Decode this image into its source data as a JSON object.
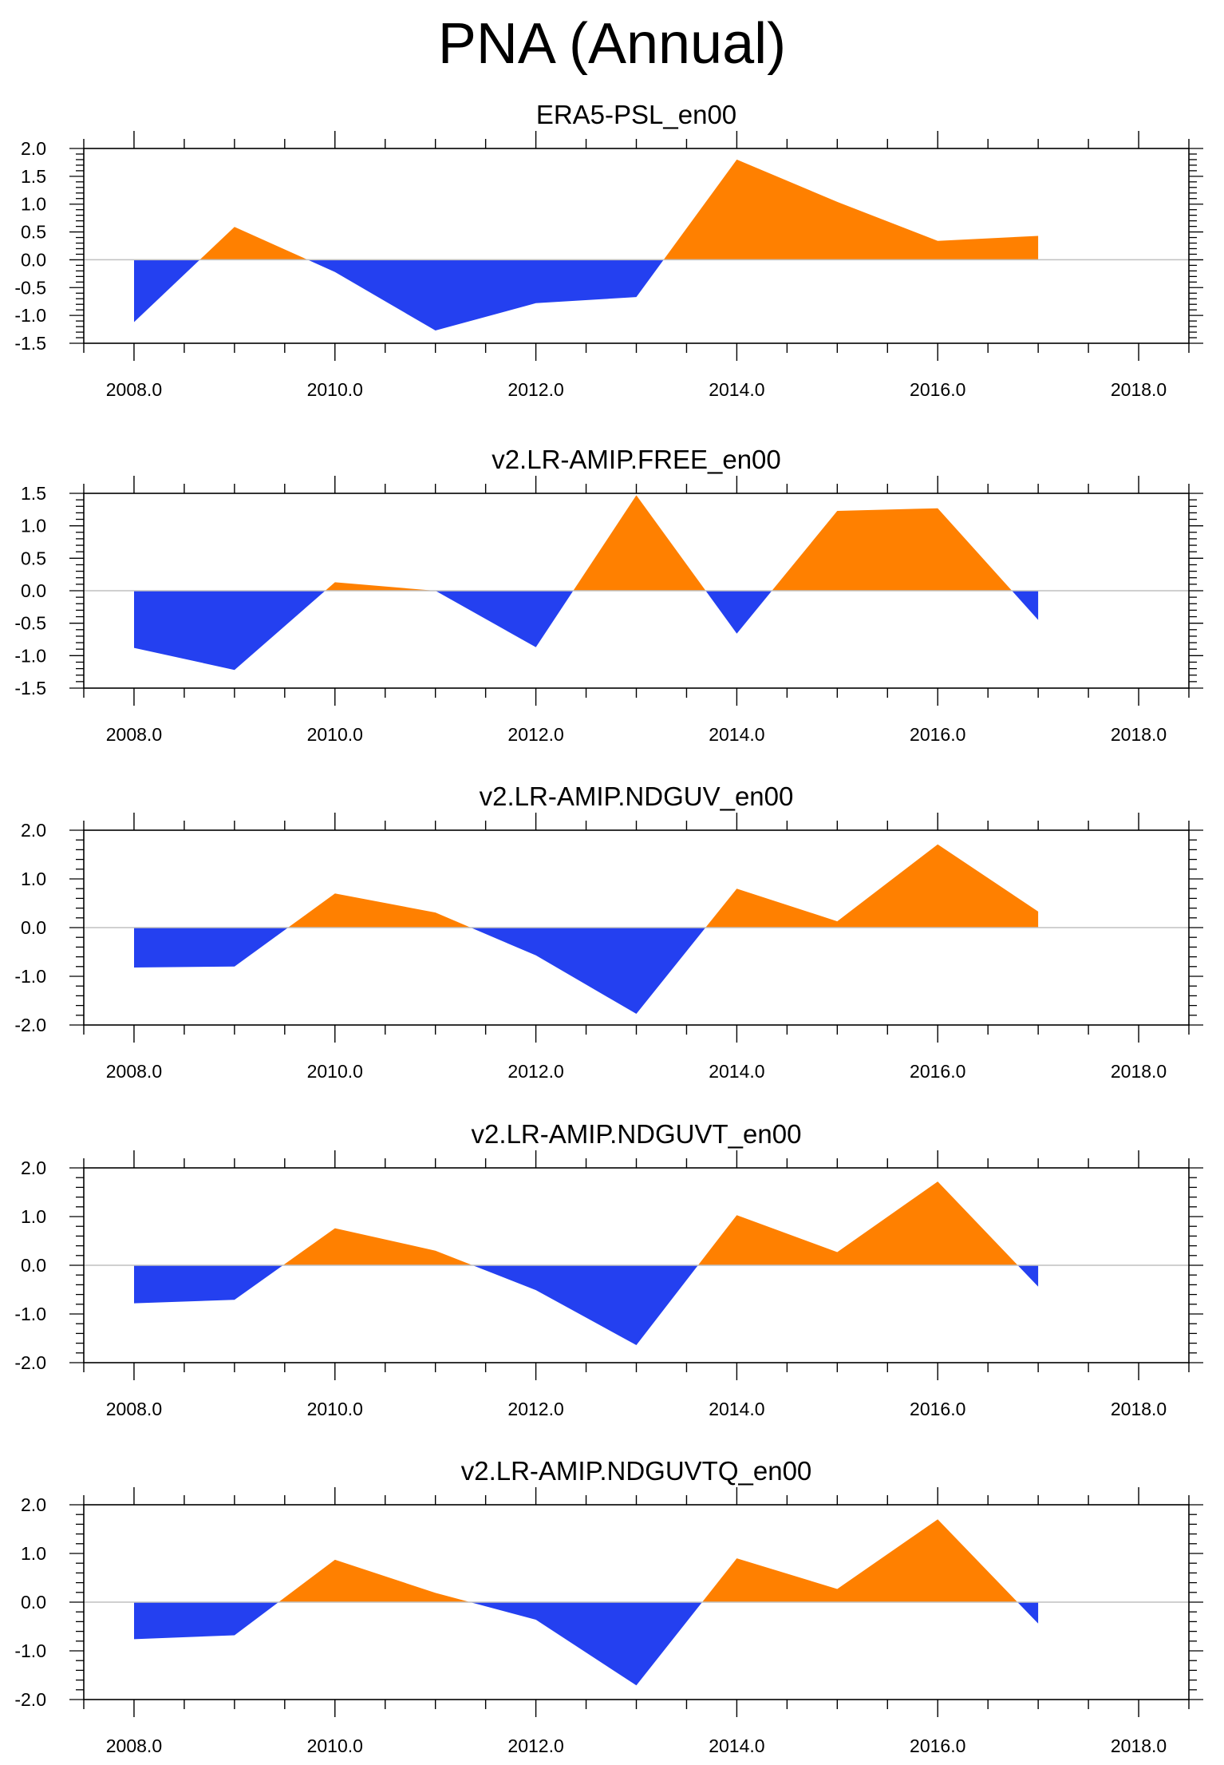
{
  "figure": {
    "title": "PNA (Annual)"
  },
  "colors": {
    "positive": "#ff8000",
    "negative": "#2440f0",
    "zero_line": "#c0c0c0",
    "axis": "#000000"
  },
  "chart_data": [
    {
      "type": "area",
      "title": "ERA5-PSL_en00",
      "xlabel": "",
      "ylabel": "",
      "xlim": [
        2007.5,
        2018.5
      ],
      "ylim": [
        -1.5,
        2.0
      ],
      "x_ticks": [
        2008,
        2010,
        2012,
        2014,
        2016,
        2018
      ],
      "x_tick_labels": [
        "2008.0",
        "2010.0",
        "2012.0",
        "2014.0",
        "2016.0",
        "2018.0"
      ],
      "y_ticks": [
        -1.5,
        -1.0,
        -0.5,
        0.0,
        0.5,
        1.0,
        1.5,
        2.0
      ],
      "y_tick_labels": [
        "-1.5",
        "-1.0",
        "-0.5",
        "0.0",
        "0.5",
        "1.0",
        "1.5",
        "2.0"
      ],
      "y_minor_step": 0.1,
      "x": [
        2008,
        2009,
        2010,
        2011,
        2012,
        2013,
        2014,
        2015,
        2016,
        2017
      ],
      "values": [
        -1.12,
        0.59,
        -0.22,
        -1.27,
        -0.78,
        -0.67,
        1.8,
        1.04,
        0.34,
        0.43
      ]
    },
    {
      "type": "area",
      "title": "v2.LR-AMIP.FREE_en00",
      "xlabel": "",
      "ylabel": "",
      "xlim": [
        2007.5,
        2018.5
      ],
      "ylim": [
        -1.5,
        1.5
      ],
      "x_ticks": [
        2008,
        2010,
        2012,
        2014,
        2016,
        2018
      ],
      "x_tick_labels": [
        "2008.0",
        "2010.0",
        "2012.0",
        "2014.0",
        "2016.0",
        "2018.0"
      ],
      "y_ticks": [
        -1.5,
        -1.0,
        -0.5,
        0.0,
        0.5,
        1.0,
        1.5
      ],
      "y_tick_labels": [
        "-1.5",
        "-1.0",
        "-0.5",
        "0.0",
        "0.5",
        "1.0",
        "1.5"
      ],
      "y_minor_step": 0.1,
      "x": [
        2008,
        2009,
        2010,
        2011,
        2012,
        2013,
        2014,
        2015,
        2016,
        2017
      ],
      "values": [
        -0.88,
        -1.22,
        0.13,
        0.0,
        -0.87,
        1.47,
        -0.66,
        1.23,
        1.27,
        -0.45
      ]
    },
    {
      "type": "area",
      "title": "v2.LR-AMIP.NDGUV_en00",
      "xlabel": "",
      "ylabel": "",
      "xlim": [
        2007.5,
        2018.5
      ],
      "ylim": [
        -2.0,
        2.0
      ],
      "x_ticks": [
        2008,
        2010,
        2012,
        2014,
        2016,
        2018
      ],
      "x_tick_labels": [
        "2008.0",
        "2010.0",
        "2012.0",
        "2014.0",
        "2016.0",
        "2018.0"
      ],
      "y_ticks": [
        -2.0,
        -1.0,
        0.0,
        1.0,
        2.0
      ],
      "y_tick_labels": [
        "-2.0",
        "-1.0",
        "0.0",
        "1.0",
        "2.0"
      ],
      "y_minor_step": 0.2,
      "x": [
        2008,
        2009,
        2010,
        2011,
        2012,
        2013,
        2014,
        2015,
        2016,
        2017
      ],
      "values": [
        -0.82,
        -0.8,
        0.7,
        0.31,
        -0.57,
        -1.77,
        0.8,
        0.13,
        1.71,
        0.33
      ]
    },
    {
      "type": "area",
      "title": "v2.LR-AMIP.NDGUVT_en00",
      "xlabel": "",
      "ylabel": "",
      "xlim": [
        2007.5,
        2018.5
      ],
      "ylim": [
        -2.0,
        2.0
      ],
      "x_ticks": [
        2008,
        2010,
        2012,
        2014,
        2016,
        2018
      ],
      "x_tick_labels": [
        "2008.0",
        "2010.0",
        "2012.0",
        "2014.0",
        "2016.0",
        "2018.0"
      ],
      "y_ticks": [
        -2.0,
        -1.0,
        0.0,
        1.0,
        2.0
      ],
      "y_tick_labels": [
        "-2.0",
        "-1.0",
        "0.0",
        "1.0",
        "2.0"
      ],
      "y_minor_step": 0.2,
      "x": [
        2008,
        2009,
        2010,
        2011,
        2012,
        2013,
        2014,
        2015,
        2016,
        2017
      ],
      "values": [
        -0.78,
        -0.71,
        0.76,
        0.3,
        -0.51,
        -1.64,
        1.03,
        0.27,
        1.72,
        -0.44
      ]
    },
    {
      "type": "area",
      "title": "v2.LR-AMIP.NDGUVTQ_en00",
      "xlabel": "",
      "ylabel": "",
      "xlim": [
        2007.5,
        2018.5
      ],
      "ylim": [
        -2.0,
        2.0
      ],
      "x_ticks": [
        2008,
        2010,
        2012,
        2014,
        2016,
        2018
      ],
      "x_tick_labels": [
        "2008.0",
        "2010.0",
        "2012.0",
        "2014.0",
        "2016.0",
        "2018.0"
      ],
      "y_ticks": [
        -2.0,
        -1.0,
        0.0,
        1.0,
        2.0
      ],
      "y_tick_labels": [
        "-2.0",
        "-1.0",
        "0.0",
        "1.0",
        "2.0"
      ],
      "y_minor_step": 0.2,
      "x": [
        2008,
        2009,
        2010,
        2011,
        2012,
        2013,
        2014,
        2015,
        2016,
        2017
      ],
      "values": [
        -0.76,
        -0.68,
        0.87,
        0.19,
        -0.36,
        -1.71,
        0.9,
        0.27,
        1.7,
        -0.44
      ]
    }
  ]
}
